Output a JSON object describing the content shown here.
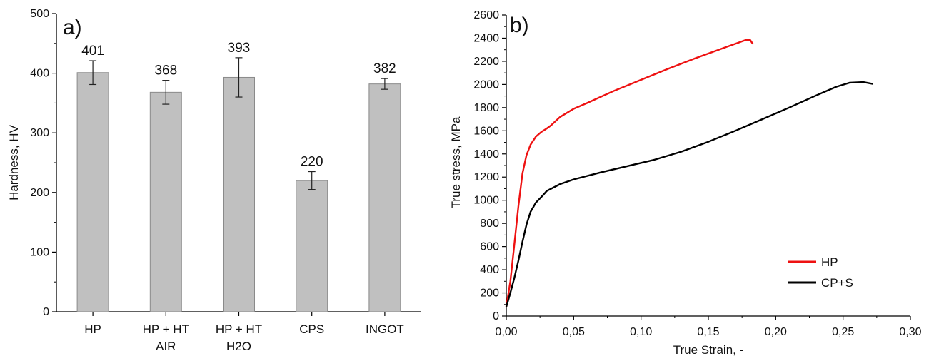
{
  "chart_data": [
    {
      "panel": "a)",
      "type": "bar",
      "ylabel": "Hardness, HV",
      "xlabel": "",
      "ylim": [
        0,
        500
      ],
      "yticks": [
        0,
        100,
        200,
        300,
        400,
        500
      ],
      "categories": [
        {
          "line1": "HP",
          "line2": ""
        },
        {
          "line1": "HP + HT",
          "line2": "AIR"
        },
        {
          "line1": "HP + HT",
          "line2": "H2O"
        },
        {
          "line1": "CPS",
          "line2": ""
        },
        {
          "line1": "INGOT",
          "line2": ""
        }
      ],
      "values": [
        401,
        368,
        393,
        220,
        382
      ],
      "value_labels": [
        "401",
        "368",
        "393",
        "220",
        "382"
      ],
      "errors": [
        20,
        20,
        33,
        15,
        9
      ],
      "bar_color": "#c0c0c0",
      "grid": false
    },
    {
      "panel": "b)",
      "type": "line",
      "xlabel": "True Strain, -",
      "ylabel": "True stress, MPa",
      "xlim": [
        0,
        0.3
      ],
      "ylim": [
        0,
        2600
      ],
      "xticks": [
        "0,00",
        "0,05",
        "0,10",
        "0,15",
        "0,20",
        "0,25",
        "0,30"
      ],
      "yticks": [
        0,
        200,
        400,
        600,
        800,
        1000,
        1200,
        1400,
        1600,
        1800,
        2000,
        2200,
        2400,
        2600
      ],
      "legend_position": "bottom-right",
      "grid": false,
      "series": [
        {
          "name": "HP",
          "color": "#ee1111",
          "points": [
            [
              0.0,
              80
            ],
            [
              0.003,
              300
            ],
            [
              0.006,
              620
            ],
            [
              0.009,
              950
            ],
            [
              0.012,
              1230
            ],
            [
              0.015,
              1390
            ],
            [
              0.018,
              1480
            ],
            [
              0.022,
              1550
            ],
            [
              0.026,
              1590
            ],
            [
              0.03,
              1620
            ],
            [
              0.033,
              1645
            ],
            [
              0.04,
              1720
            ],
            [
              0.05,
              1790
            ],
            [
              0.06,
              1840
            ],
            [
              0.08,
              1945
            ],
            [
              0.1,
              2040
            ],
            [
              0.12,
              2135
            ],
            [
              0.14,
              2225
            ],
            [
              0.16,
              2310
            ],
            [
              0.172,
              2360
            ],
            [
              0.178,
              2385
            ],
            [
              0.181,
              2385
            ],
            [
              0.183,
              2350
            ]
          ]
        },
        {
          "name": "CP+S",
          "color": "#000000",
          "points": [
            [
              0.0,
              80
            ],
            [
              0.003,
              200
            ],
            [
              0.006,
              330
            ],
            [
              0.009,
              480
            ],
            [
              0.012,
              640
            ],
            [
              0.015,
              790
            ],
            [
              0.018,
              900
            ],
            [
              0.022,
              980
            ],
            [
              0.027,
              1040
            ],
            [
              0.03,
              1080
            ],
            [
              0.04,
              1140
            ],
            [
              0.05,
              1180
            ],
            [
              0.07,
              1240
            ],
            [
              0.09,
              1295
            ],
            [
              0.11,
              1350
            ],
            [
              0.13,
              1420
            ],
            [
              0.15,
              1505
            ],
            [
              0.17,
              1600
            ],
            [
              0.19,
              1700
            ],
            [
              0.21,
              1800
            ],
            [
              0.23,
              1905
            ],
            [
              0.245,
              1980
            ],
            [
              0.255,
              2015
            ],
            [
              0.265,
              2020
            ],
            [
              0.272,
              2005
            ]
          ]
        }
      ]
    }
  ]
}
